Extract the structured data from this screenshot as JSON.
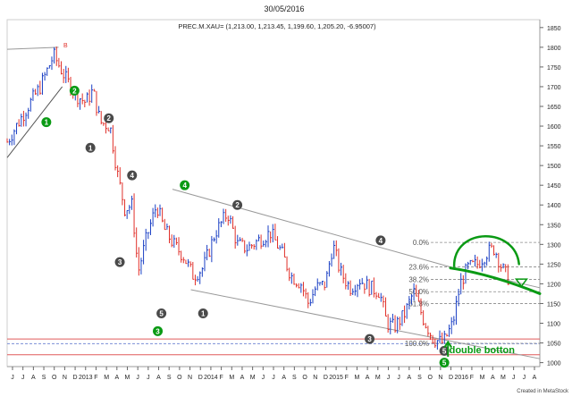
{
  "header": {
    "date": "30/05/2016",
    "instrument_info": "PREC.M.XAU= (1,213.00, 1,213.45, 1,199.60, 1,205.20, -6.95007)"
  },
  "footer": {
    "credit": "Created in MetaStock"
  },
  "annotations": {
    "double_bottom": "double botton",
    "fib_levels": [
      "0.0%",
      "23.6%",
      "38.2%",
      "50.0%",
      "61.8%",
      "100.0%"
    ],
    "fib_values": [
      1305,
      1243,
      1211,
      1180,
      1150,
      1049
    ],
    "waves_gray": [
      {
        "label": "1",
        "x": 2013.08,
        "y": 1545
      },
      {
        "label": "2",
        "x": 2013.23,
        "y": 1620
      },
      {
        "label": "4",
        "x": 2013.42,
        "y": 1475
      },
      {
        "label": "3",
        "x": 2013.32,
        "y": 1255
      },
      {
        "label": "5",
        "x": 2013.66,
        "y": 1125
      },
      {
        "label": "1",
        "x": 2014.0,
        "y": 1125
      },
      {
        "label": "2",
        "x": 2014.28,
        "y": 1400
      },
      {
        "label": "4",
        "x": 2015.45,
        "y": 1310
      },
      {
        "label": "3",
        "x": 2015.36,
        "y": 1060
      },
      {
        "label": "5",
        "x": 2015.97,
        "y": 1030
      }
    ],
    "waves_green": [
      {
        "label": "1",
        "x": 2012.72,
        "y": 1610
      },
      {
        "label": "2",
        "x": 2012.95,
        "y": 1690
      },
      {
        "label": "4",
        "x": 2013.85,
        "y": 1450
      },
      {
        "label": "3",
        "x": 2013.63,
        "y": 1080
      },
      {
        "label": "5",
        "x": 2015.97,
        "y": 1000
      }
    ],
    "b_marker": "B"
  },
  "colors": {
    "up_bar": "#1a3fc4",
    "down_bar": "#e0302a",
    "green_annotation": "#0a9a14",
    "wave_gray": "#4a4a4a",
    "channel_line": "#999999",
    "support_line": "#e05a5a",
    "dashed_support": "#7a8fd6",
    "fib_line": "#888888"
  },
  "chart_data": {
    "type": "ohlc",
    "title": "PREC.M.XAU= (1,213.00, 1,213.45, 1,199.60, 1,205.20, -6.95007)",
    "xlabel": "",
    "ylabel": "",
    "ylim": [
      990,
      1870
    ],
    "yticks": [
      1000,
      1050,
      1100,
      1150,
      1200,
      1250,
      1300,
      1350,
      1400,
      1450,
      1500,
      1550,
      1600,
      1650,
      1700,
      1750,
      1800,
      1850
    ],
    "x_tick_labels": [
      "J",
      "J",
      "A",
      "S",
      "O",
      "N",
      "D",
      "2013",
      "F",
      "M",
      "A",
      "M",
      "J",
      "J",
      "A",
      "S",
      "O",
      "N",
      "D",
      "2014",
      "F",
      "M",
      "A",
      "M",
      "J",
      "J",
      "A",
      "S",
      "O",
      "N",
      "D",
      "2015",
      "F",
      "M",
      "A",
      "M",
      "J",
      "J",
      "A",
      "S",
      "O",
      "N",
      "D",
      "2016",
      "F",
      "M",
      "A",
      "M",
      "J",
      "J",
      "A"
    ],
    "price_path": [
      {
        "x": 2012.4,
        "y": 1560
      },
      {
        "x": 2012.55,
        "y": 1640
      },
      {
        "x": 2012.67,
        "y": 1700
      },
      {
        "x": 2012.78,
        "y": 1780
      },
      {
        "x": 2012.88,
        "y": 1720
      },
      {
        "x": 2012.96,
        "y": 1680
      },
      {
        "x": 2013.04,
        "y": 1660
      },
      {
        "x": 2013.1,
        "y": 1690
      },
      {
        "x": 2013.16,
        "y": 1610
      },
      {
        "x": 2013.24,
        "y": 1600
      },
      {
        "x": 2013.3,
        "y": 1480
      },
      {
        "x": 2013.36,
        "y": 1390
      },
      {
        "x": 2013.42,
        "y": 1400
      },
      {
        "x": 2013.47,
        "y": 1230
      },
      {
        "x": 2013.54,
        "y": 1320
      },
      {
        "x": 2013.62,
        "y": 1400
      },
      {
        "x": 2013.68,
        "y": 1340
      },
      {
        "x": 2013.76,
        "y": 1300
      },
      {
        "x": 2013.84,
        "y": 1270
      },
      {
        "x": 2013.92,
        "y": 1220
      },
      {
        "x": 2014.0,
        "y": 1240
      },
      {
        "x": 2014.1,
        "y": 1330
      },
      {
        "x": 2014.2,
        "y": 1380
      },
      {
        "x": 2014.28,
        "y": 1300
      },
      {
        "x": 2014.36,
        "y": 1290
      },
      {
        "x": 2014.45,
        "y": 1310
      },
      {
        "x": 2014.55,
        "y": 1330
      },
      {
        "x": 2014.64,
        "y": 1280
      },
      {
        "x": 2014.72,
        "y": 1220
      },
      {
        "x": 2014.8,
        "y": 1200
      },
      {
        "x": 2014.86,
        "y": 1150
      },
      {
        "x": 2014.92,
        "y": 1190
      },
      {
        "x": 2015.0,
        "y": 1200
      },
      {
        "x": 2015.06,
        "y": 1300
      },
      {
        "x": 2015.12,
        "y": 1230
      },
      {
        "x": 2015.2,
        "y": 1190
      },
      {
        "x": 2015.28,
        "y": 1210
      },
      {
        "x": 2015.36,
        "y": 1190
      },
      {
        "x": 2015.44,
        "y": 1180
      },
      {
        "x": 2015.5,
        "y": 1100
      },
      {
        "x": 2015.56,
        "y": 1090
      },
      {
        "x": 2015.64,
        "y": 1120
      },
      {
        "x": 2015.72,
        "y": 1180
      },
      {
        "x": 2015.8,
        "y": 1110
      },
      {
        "x": 2015.88,
        "y": 1060
      },
      {
        "x": 2015.96,
        "y": 1050
      },
      {
        "x": 2016.04,
        "y": 1100
      },
      {
        "x": 2016.1,
        "y": 1200
      },
      {
        "x": 2016.16,
        "y": 1240
      },
      {
        "x": 2016.24,
        "y": 1250
      },
      {
        "x": 2016.32,
        "y": 1280
      },
      {
        "x": 2016.38,
        "y": 1290
      },
      {
        "x": 2016.44,
        "y": 1240
      },
      {
        "x": 2016.5,
        "y": 1210
      }
    ]
  }
}
